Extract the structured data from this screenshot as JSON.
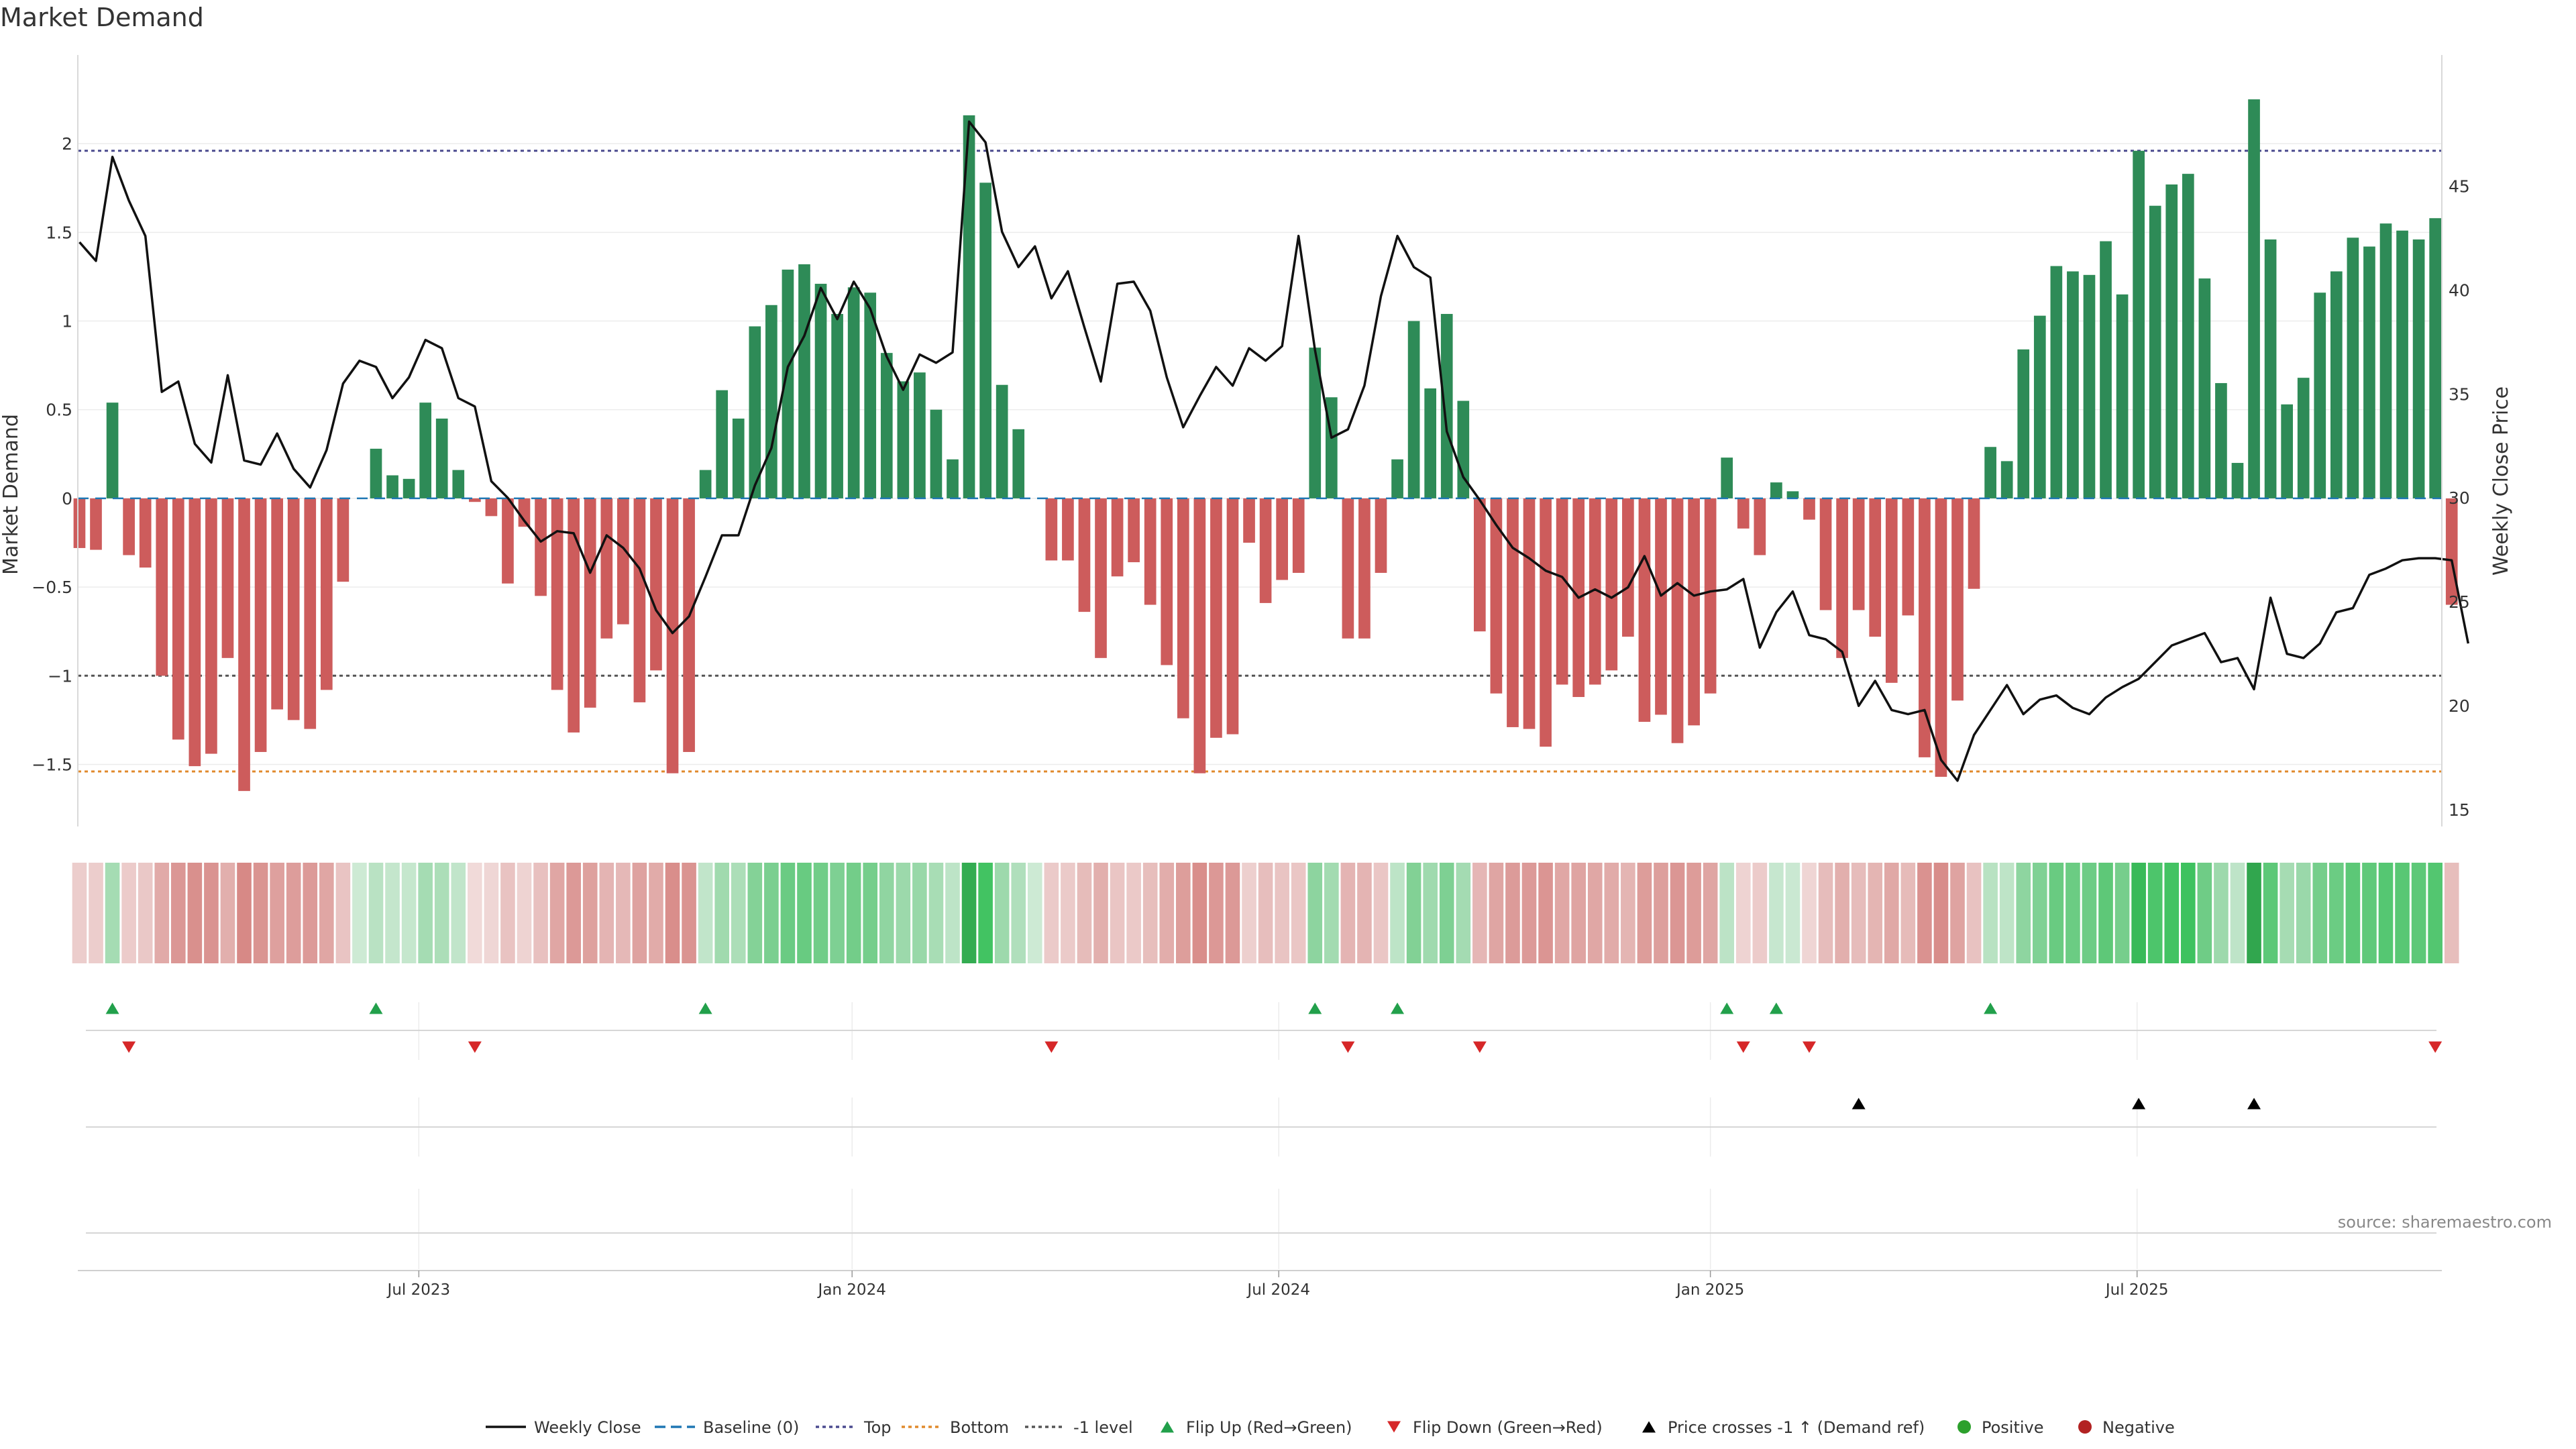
{
  "title": "Market Demand",
  "source": "source: sharemaestro.com",
  "colors": {
    "positive": "#2e8b57",
    "negative": "#cd5c5c",
    "price_line": "#111111",
    "top_line": "#4b4b8f",
    "bottom_line": "#e08a2c",
    "minus_one_line": "#555555",
    "baseline": "#1f77b4",
    "flip_up": "#22a04b",
    "flip_down": "#d62728",
    "cross_marker": "#000000",
    "pos_dot": "#2ca02c",
    "neg_dot": "#b22222"
  },
  "chart_data": {
    "type": "bar",
    "title": "Market Demand",
    "ylabel": "Market Demand",
    "ylabel_right": "Weekly Close Price",
    "ylim": [
      -1.85,
      2.5
    ],
    "ylim_right": [
      14.2,
      51.3
    ],
    "yticks": [
      -1.5,
      -1,
      -0.5,
      0,
      0.5,
      1,
      1.5,
      2
    ],
    "ytick_labels": [
      "−1.5",
      "−1",
      "−0.5",
      "0",
      "0.5",
      "1",
      "1.5",
      "2"
    ],
    "yticks_right": [
      15,
      20,
      25,
      30,
      35,
      40,
      45
    ],
    "ytick_labels_right": [
      "15",
      "20",
      "25",
      "30",
      "35",
      "40",
      "45"
    ],
    "levels": {
      "top": 1.96,
      "bottom": -1.54,
      "minus_one": -1.0,
      "baseline": 0
    },
    "x_range_index": [
      -0.1,
      143.4
    ],
    "date_ticks": [
      {
        "label": "Jul 2023",
        "index": 20.6
      },
      {
        "label": "Jan 2024",
        "index": 46.9
      },
      {
        "label": "Jul 2024",
        "index": 72.8
      },
      {
        "label": "Jan 2025",
        "index": 99.0
      },
      {
        "label": "Jul 2025",
        "index": 124.9
      }
    ],
    "demand": [
      -0.28,
      -0.29,
      0.54,
      -0.32,
      -0.39,
      -1.0,
      -1.36,
      -1.51,
      -1.44,
      -0.9,
      -1.65,
      -1.43,
      -1.19,
      -1.25,
      -1.3,
      -1.08,
      -0.47,
      0,
      0.28,
      0.13,
      0.11,
      0.54,
      0.45,
      0.16,
      -0.02,
      -0.1,
      -0.48,
      -0.16,
      -0.55,
      -1.08,
      -1.32,
      -1.18,
      -0.79,
      -0.71,
      -1.15,
      -0.97,
      -1.55,
      -1.43,
      0.16,
      0.61,
      0.45,
      0.97,
      1.09,
      1.29,
      1.32,
      1.21,
      1.04,
      1.19,
      1.16,
      0.82,
      0.66,
      0.71,
      0.5,
      0.22,
      2.16,
      1.78,
      0.64,
      0.39,
      0,
      -0.35,
      -0.35,
      -0.64,
      -0.9,
      -0.44,
      -0.36,
      -0.6,
      -0.94,
      -1.24,
      -1.55,
      -1.35,
      -1.33,
      -0.25,
      -0.59,
      -0.46,
      -0.42,
      0.85,
      0.57,
      -0.79,
      -0.79,
      -0.42,
      0.22,
      1.0,
      0.62,
      1.04,
      0.55,
      -0.75,
      -1.1,
      -1.29,
      -1.3,
      -1.4,
      -1.05,
      -1.12,
      -1.05,
      -0.97,
      -0.78,
      -1.26,
      -1.22,
      -1.38,
      -1.28,
      -1.1,
      0.23,
      -0.17,
      -0.32,
      0.09,
      0.04,
      -0.12,
      -0.63,
      -0.9,
      -0.63,
      -0.78,
      -1.04,
      -0.66,
      -1.46,
      -1.57,
      -1.14,
      -0.51,
      0.29,
      0.21,
      0.84,
      1.03,
      1.31,
      1.28,
      1.26,
      1.45,
      1.15,
      1.96,
      1.65,
      1.77,
      1.83,
      1.24,
      0.65,
      0.2,
      2.25,
      1.46,
      0.53,
      0.68,
      1.16,
      1.28,
      1.47,
      1.42,
      1.55,
      1.51,
      1.46,
      1.58,
      -0.6
    ],
    "price": [
      42.3,
      41.4,
      46.4,
      44.3,
      42.6,
      35.1,
      35.6,
      32.6,
      31.7,
      35.9,
      31.8,
      31.6,
      33.1,
      31.4,
      30.5,
      32.3,
      35.5,
      36.6,
      36.3,
      34.8,
      35.8,
      37.6,
      37.2,
      34.8,
      34.4,
      30.8,
      30.0,
      28.9,
      27.9,
      28.4,
      28.3,
      26.4,
      28.2,
      27.6,
      26.6,
      24.6,
      23.5,
      24.3,
      26.2,
      28.2,
      28.2,
      30.6,
      32.4,
      36.3,
      37.8,
      40.1,
      38.6,
      40.4,
      39.1,
      36.8,
      35.2,
      36.9,
      36.5,
      37.0,
      48.1,
      47.1,
      42.8,
      41.1,
      42.1,
      39.6,
      40.9,
      38.2,
      35.6,
      40.3,
      40.4,
      39.0,
      35.8,
      33.4,
      34.9,
      36.3,
      35.4,
      37.2,
      36.6,
      37.3,
      42.6,
      37.1,
      32.9,
      33.3,
      35.4,
      39.7,
      42.6,
      41.1,
      40.6,
      33.2,
      31.0,
      29.9,
      28.7,
      27.6,
      27.1,
      26.5,
      26.2,
      25.2,
      25.6,
      25.2,
      25.7,
      27.2,
      25.3,
      25.9,
      25.3,
      25.5,
      25.6,
      26.1,
      22.8,
      24.5,
      25.5,
      23.4,
      23.2,
      22.6,
      20.0,
      21.2,
      19.8,
      19.6,
      19.8,
      17.4,
      16.4,
      18.6,
      19.8,
      21.0,
      19.6,
      20.3,
      20.5,
      19.9,
      19.6,
      20.4,
      20.9,
      21.3,
      22.1,
      22.9,
      23.2,
      23.5,
      22.1,
      22.3,
      20.8,
      25.2,
      22.5,
      22.3,
      23.0,
      24.5,
      24.7,
      26.3,
      26.6,
      27.0,
      27.1,
      27.1,
      27.0,
      23.0
    ],
    "heat_strip": "one colour block per week, green shades for positive demand and red shades for negative demand",
    "flip_up_index": [
      2,
      18,
      38,
      75,
      80,
      100,
      103,
      116
    ],
    "flip_down_index": [
      3,
      24,
      59,
      77,
      85,
      101,
      105,
      143
    ],
    "price_cross_index": [
      108,
      125,
      132
    ],
    "legend": [
      "Weekly Close",
      "Baseline (0)",
      "Top",
      "Bottom",
      "-1 level",
      "Flip Up (Red→Green)",
      "Flip Down (Green→Red)",
      "Price crosses -1 ↑ (Demand ref)",
      "Positive",
      "Negative"
    ]
  }
}
